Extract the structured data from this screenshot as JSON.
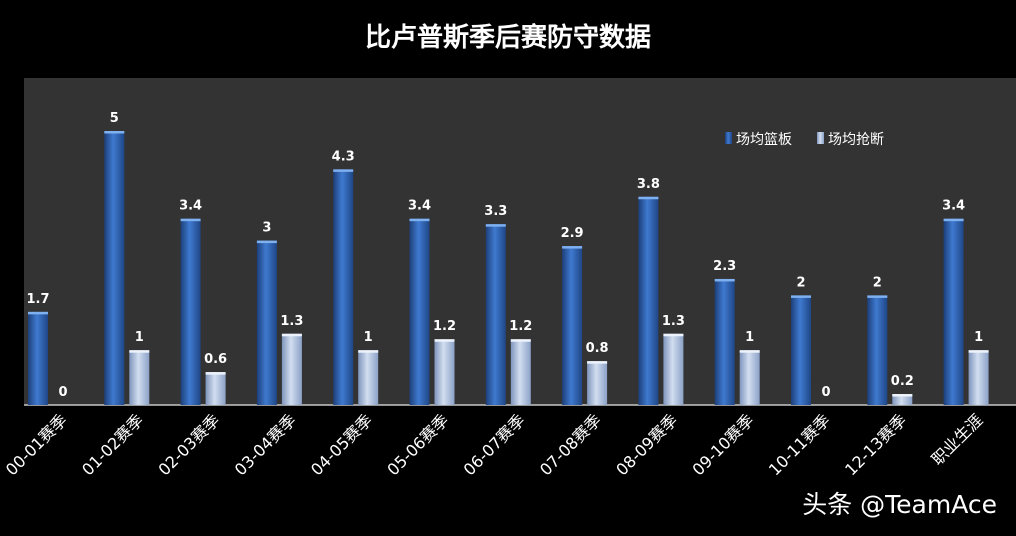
{
  "chart_data": {
    "type": "bar",
    "title": "比卢普斯季后赛防守数据",
    "categories": [
      "00-01赛季",
      "01-02赛季",
      "02-03赛季",
      "03-04赛季",
      "04-05赛季",
      "05-06赛季",
      "06-07赛季",
      "07-08赛季",
      "08-09赛季",
      "09-10赛季",
      "10-11赛季",
      "12-13赛季",
      "职业生涯"
    ],
    "series": [
      {
        "name": "场均篮板",
        "values": [
          1.7,
          5,
          3.4,
          3,
          4.3,
          3.4,
          3.3,
          2.9,
          3.8,
          2.3,
          2,
          2,
          3.4
        ],
        "color": "#2f63b0"
      },
      {
        "name": "场均抢断",
        "values": [
          0,
          1,
          0.6,
          1.3,
          1,
          1.2,
          1.2,
          0.8,
          1.3,
          1,
          0,
          0.2,
          1
        ],
        "color": "#a9bedd"
      }
    ],
    "value_labels": [
      [
        "1.7",
        "5",
        "3.4",
        "3",
        "4.3",
        "3.4",
        "3.3",
        "2.9",
        "3.8",
        "2.3",
        "2",
        "2",
        "3.4"
      ],
      [
        "0",
        "1",
        "0.6",
        "1.3",
        "1",
        "1.2",
        "1.2",
        "0.8",
        "1.3",
        "1",
        "0",
        "0.2",
        "1"
      ]
    ],
    "xlabel": "",
    "ylabel": "",
    "ylim": [
      0,
      5
    ],
    "grid": false,
    "legend_position": "top-right",
    "plot_background": "#333333"
  },
  "watermark": "头条 @TeamAce"
}
